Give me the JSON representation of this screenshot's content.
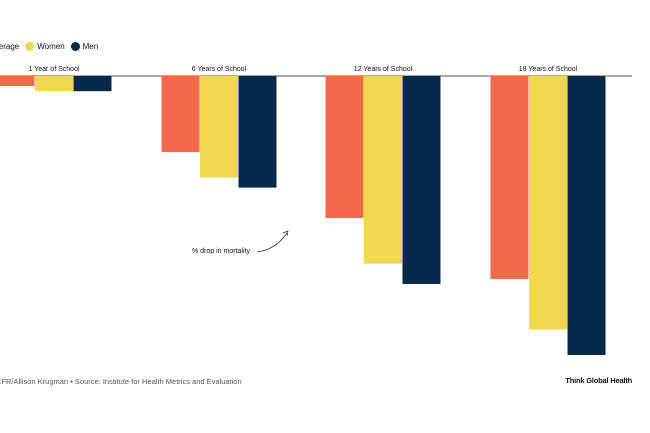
{
  "chart_data": {
    "type": "bar",
    "categories": [
      "1 Year of School",
      "6 Years of School",
      "12 Years of School",
      "18 Years of School"
    ],
    "series": [
      {
        "name": "Global Average",
        "color": "#f26a4b",
        "values": [
          -2,
          -15,
          -28,
          -40
        ]
      },
      {
        "name": "Women",
        "color": "#f0d852",
        "values": [
          -3,
          -20,
          -37,
          -50
        ]
      },
      {
        "name": "Men",
        "color": "#08294a",
        "values": [
          -3,
          -22,
          -41,
          -55
        ]
      }
    ],
    "legend": {
      "placement": "top-left",
      "labels": [
        "l Average",
        "Women",
        "Men"
      ]
    },
    "annotation": "% drop in mortality",
    "ylim": [
      -55,
      0
    ],
    "grid": false
  },
  "footer": {
    "credit": "CFR/Allison Krugman • Source: Institute for Health Metrics and Evaluation",
    "brand": "Think Global Health"
  }
}
